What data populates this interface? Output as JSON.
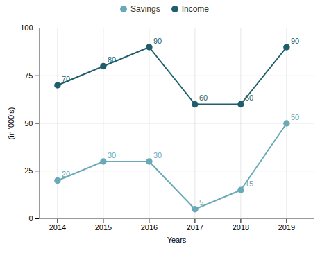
{
  "chart_data": {
    "type": "line",
    "x": [
      2014,
      2015,
      2016,
      2017,
      2018,
      2019
    ],
    "series": [
      {
        "name": "Savings",
        "color": "#6aaab8",
        "values": [
          20,
          30,
          30,
          5,
          15,
          50
        ]
      },
      {
        "name": "Income",
        "color": "#1f5f6b",
        "values": [
          70,
          80,
          90,
          60,
          60,
          90
        ]
      }
    ],
    "xlabel": "Years",
    "ylabel": "(in '000's)",
    "xlim": [
      2013.6,
      2019.6
    ],
    "xticks": [
      2014,
      2015,
      2016,
      2017,
      2018,
      2019
    ],
    "ylim": [
      0,
      100
    ],
    "yticks": [
      0,
      25,
      50,
      75,
      100
    ],
    "grid": true,
    "legend": "top",
    "marker": "circle",
    "data_labels": true
  }
}
